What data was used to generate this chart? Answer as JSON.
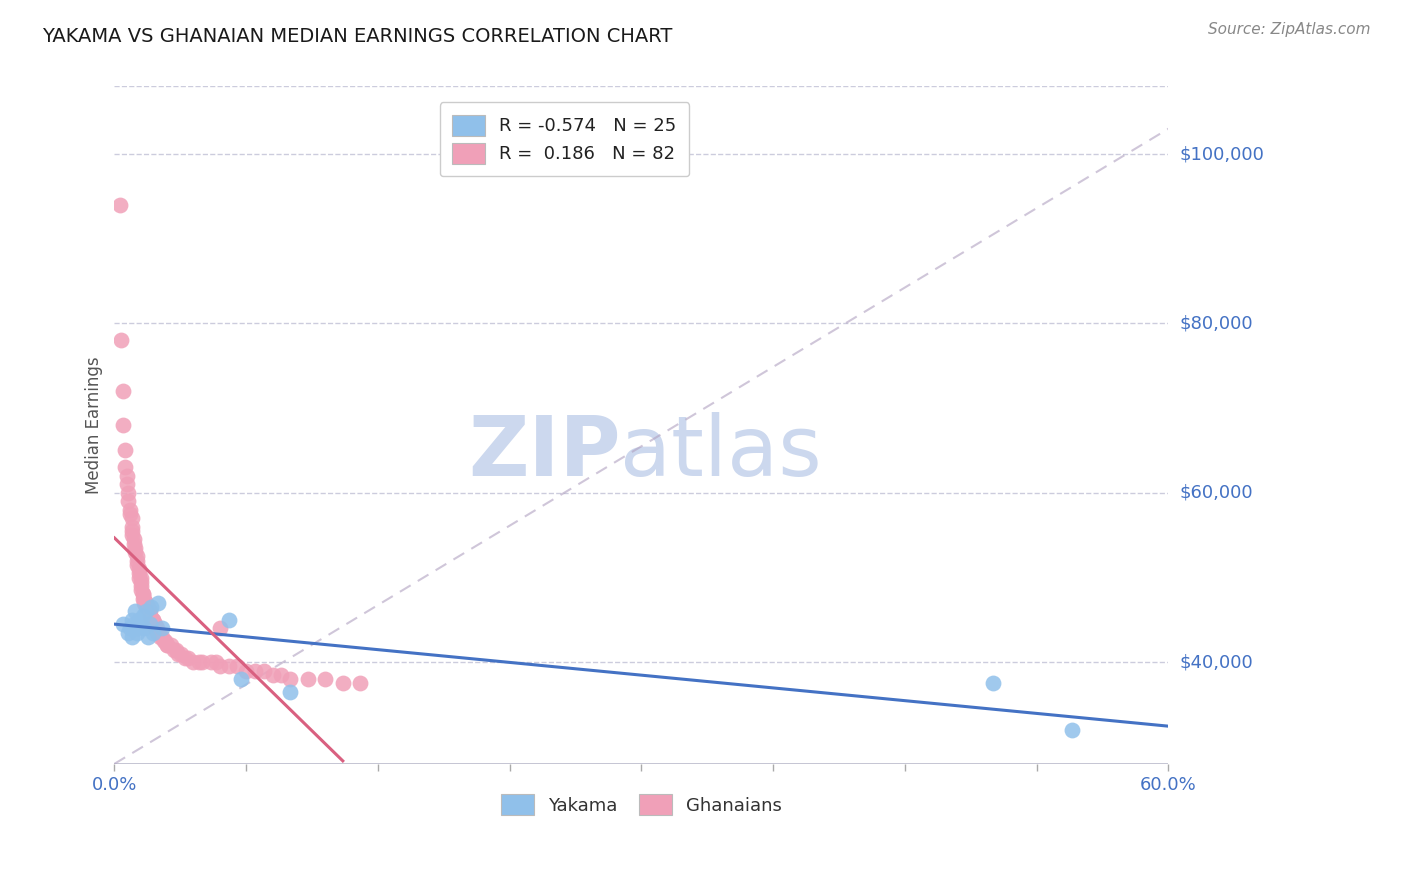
{
  "title": "YAKAMA VS GHANAIAN MEDIAN EARNINGS CORRELATION CHART",
  "source": "Source: ZipAtlas.com",
  "ylabel": "Median Earnings",
  "xlim": [
    0.0,
    0.6
  ],
  "ylim": [
    28000,
    108000
  ],
  "yticks": [
    40000,
    60000,
    80000,
    100000
  ],
  "ytick_labels": [
    "$40,000",
    "$60,000",
    "$80,000",
    "$100,000"
  ],
  "xticks": [
    0.0,
    0.075,
    0.15,
    0.225,
    0.3,
    0.375,
    0.45,
    0.525,
    0.6
  ],
  "xtick_labels_show": [
    "0.0%",
    "60.0%"
  ],
  "yakama_R": -0.574,
  "yakama_N": 25,
  "ghanaian_R": 0.186,
  "ghanaian_N": 82,
  "blue_color": "#90c0ea",
  "pink_color": "#f0a0b8",
  "blue_line_color": "#4472c4",
  "pink_line_color": "#d96080",
  "label_color": "#4472c4",
  "watermark_color": "#ccd8ee",
  "background_color": "#ffffff",
  "grid_color": "#ccccdd",
  "yakama_x": [
    0.005,
    0.008,
    0.009,
    0.01,
    0.01,
    0.011,
    0.012,
    0.013,
    0.013,
    0.014,
    0.015,
    0.016,
    0.017,
    0.018,
    0.019,
    0.02,
    0.021,
    0.022,
    0.025,
    0.027,
    0.065,
    0.072,
    0.1,
    0.5,
    0.545
  ],
  "yakama_y": [
    44500,
    43500,
    44000,
    45000,
    43000,
    44500,
    46000,
    43500,
    44000,
    45000,
    44500,
    45500,
    44000,
    46000,
    43000,
    44500,
    46500,
    43500,
    47000,
    44000,
    45000,
    38000,
    36500,
    37500,
    32000
  ],
  "ghanaian_x": [
    0.003,
    0.004,
    0.005,
    0.005,
    0.006,
    0.006,
    0.007,
    0.007,
    0.008,
    0.008,
    0.009,
    0.009,
    0.01,
    0.01,
    0.01,
    0.01,
    0.011,
    0.011,
    0.012,
    0.012,
    0.013,
    0.013,
    0.013,
    0.014,
    0.014,
    0.014,
    0.015,
    0.015,
    0.015,
    0.015,
    0.016,
    0.016,
    0.016,
    0.017,
    0.017,
    0.018,
    0.018,
    0.019,
    0.02,
    0.02,
    0.02,
    0.021,
    0.022,
    0.022,
    0.022,
    0.023,
    0.023,
    0.024,
    0.024,
    0.025,
    0.026,
    0.027,
    0.028,
    0.029,
    0.03,
    0.03,
    0.032,
    0.034,
    0.035,
    0.036,
    0.038,
    0.04,
    0.042,
    0.045,
    0.048,
    0.05,
    0.055,
    0.058,
    0.06,
    0.065,
    0.07,
    0.075,
    0.08,
    0.085,
    0.09,
    0.095,
    0.1,
    0.11,
    0.12,
    0.13,
    0.14,
    0.06
  ],
  "ghanaian_y": [
    94000,
    78000,
    72000,
    68000,
    65000,
    63000,
    62000,
    61000,
    60000,
    59000,
    58000,
    57500,
    57000,
    56000,
    55500,
    55000,
    54500,
    54000,
    53500,
    53000,
    52500,
    52000,
    51500,
    51000,
    50500,
    50000,
    50000,
    49500,
    49000,
    48500,
    48000,
    48000,
    47500,
    47500,
    47000,
    47000,
    46500,
    46500,
    46000,
    45500,
    45500,
    45000,
    45000,
    45000,
    44500,
    44500,
    44000,
    44000,
    43500,
    43500,
    43000,
    43000,
    42500,
    42500,
    42000,
    42000,
    42000,
    41500,
    41500,
    41000,
    41000,
    40500,
    40500,
    40000,
    40000,
    40000,
    40000,
    40000,
    39500,
    39500,
    39500,
    39000,
    39000,
    39000,
    38500,
    38500,
    38000,
    38000,
    38000,
    37500,
    37500,
    44000
  ],
  "ref_line_x": [
    0.0,
    0.6
  ],
  "ref_line_y": [
    28000,
    103000
  ]
}
